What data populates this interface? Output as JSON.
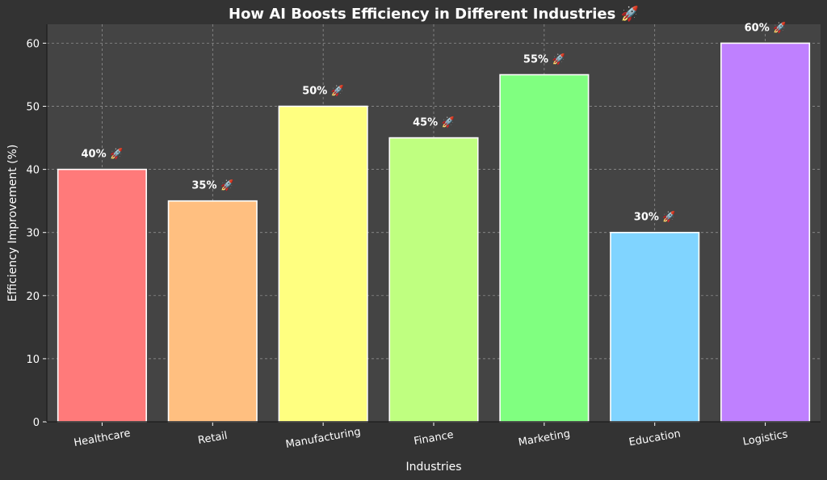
{
  "chart_data": {
    "type": "bar",
    "title": "How AI Boosts Efficiency in Different Industries 🚀",
    "xlabel": "Industries",
    "ylabel": "Efficiency Improvement (%)",
    "categories": [
      "Healthcare",
      "Retail",
      "Manufacturing",
      "Finance",
      "Marketing",
      "Education",
      "Logistics"
    ],
    "values": [
      40,
      35,
      50,
      45,
      55,
      30,
      60
    ],
    "data_labels": [
      "40% 🚀",
      "35% 🚀",
      "50% 🚀",
      "45% 🚀",
      "55% 🚀",
      "30% 🚀",
      "60% 🚀"
    ],
    "colors": [
      "#ff7a7a",
      "#ffbf80",
      "#ffff80",
      "#bfff80",
      "#80ff80",
      "#80d4ff",
      "#bf80ff"
    ],
    "yticks": [
      0,
      10,
      20,
      30,
      40,
      50,
      60
    ],
    "ylim": [
      0,
      63
    ],
    "grid": true,
    "background": "#333333",
    "plot_background": "#444444"
  }
}
